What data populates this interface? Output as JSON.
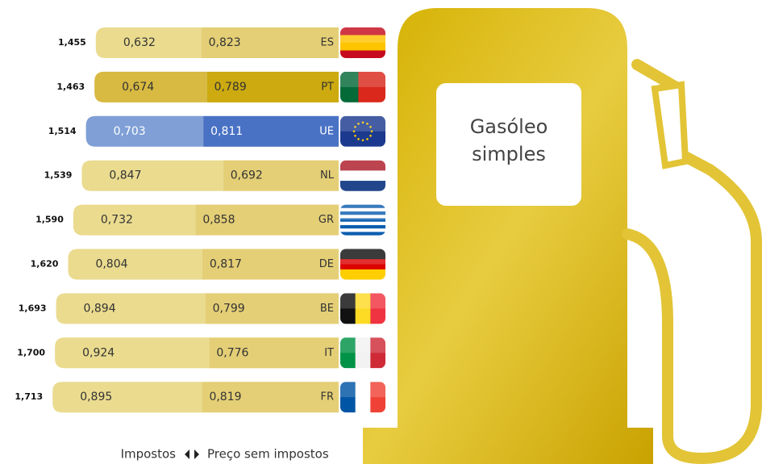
{
  "chart_data": {
    "type": "bar",
    "title": "Gasóleo simples",
    "categories": [
      "ES",
      "PT",
      "UE",
      "NL",
      "GR",
      "DE",
      "BE",
      "IT",
      "FR"
    ],
    "totals": [
      1.455,
      1.463,
      1.514,
      1.539,
      1.59,
      1.62,
      1.693,
      1.7,
      1.713
    ],
    "total_labels": [
      "1,455",
      "1,463",
      "1,514",
      "1,539",
      "1,590",
      "1,620",
      "1,693",
      "1,700",
      "1,713"
    ],
    "series": [
      {
        "name": "Impostos",
        "values": [
          0.632,
          0.674,
          0.703,
          0.847,
          0.732,
          0.804,
          0.894,
          0.924,
          0.895
        ],
        "value_labels": [
          "0,632",
          "0,674",
          "0,703",
          "0,847",
          "0,732",
          "0,804",
          "0,894",
          "0,924",
          "0,895"
        ],
        "colors": [
          "#eadb8f",
          "#d8b941",
          "#7f9fd6",
          "#eadb8f",
          "#eadb8f",
          "#eadb8f",
          "#eadb8f",
          "#eadb8f",
          "#eadb8f"
        ]
      },
      {
        "name": "Preço sem impostos",
        "values": [
          0.823,
          0.789,
          0.811,
          0.692,
          0.858,
          0.817,
          0.799,
          0.776,
          0.819
        ],
        "value_labels": [
          "0,823",
          "0,789",
          "0,811",
          "0,692",
          "0,858",
          "0,817",
          "0,799",
          "0,776",
          "0,819"
        ],
        "colors": [
          "#e4cf76",
          "#ccaa10",
          "#4a72c4",
          "#e4cf76",
          "#e4cf76",
          "#e4cf76",
          "#e4cf76",
          "#e4cf76",
          "#e4cf76"
        ]
      }
    ]
  }
}
